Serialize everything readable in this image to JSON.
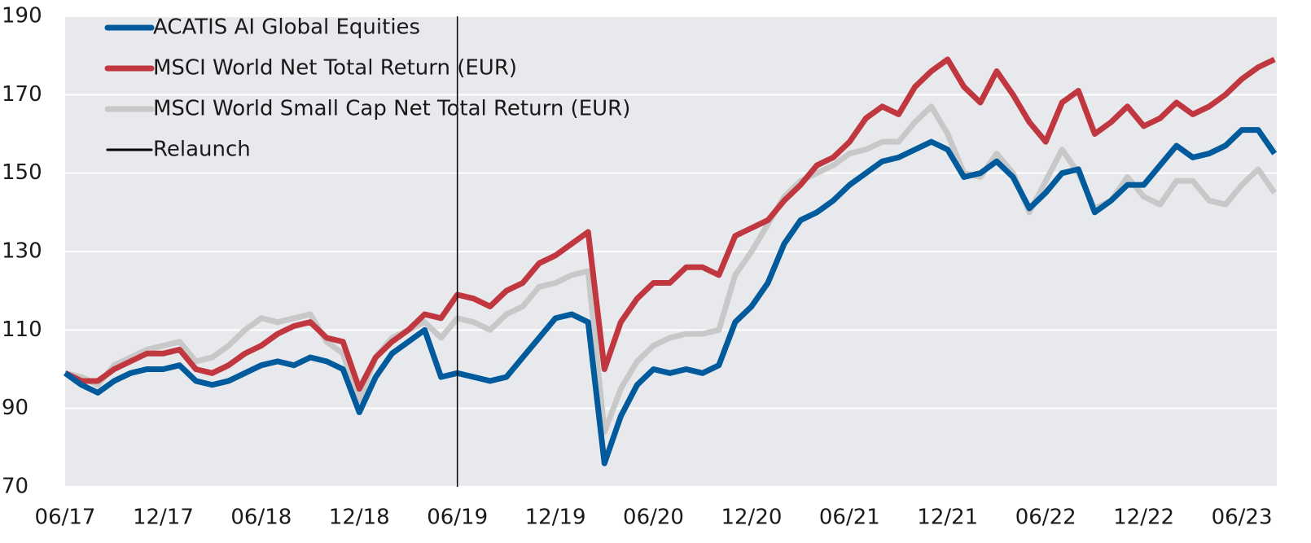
{
  "chart_data": {
    "type": "line",
    "categories": [
      "06/17",
      null,
      null,
      null,
      null,
      null,
      "12/17",
      null,
      null,
      null,
      null,
      null,
      "06/18",
      null,
      null,
      null,
      null,
      null,
      "12/18",
      null,
      null,
      null,
      null,
      null,
      "06/19",
      null,
      null,
      null,
      null,
      null,
      "12/19",
      null,
      null,
      null,
      null,
      null,
      "06/20",
      null,
      null,
      null,
      null,
      null,
      "12/20",
      null,
      null,
      null,
      null,
      null,
      "06/21",
      null,
      null,
      null,
      null,
      null,
      "12/21",
      null,
      null,
      null,
      null,
      null,
      "06/22",
      null,
      null,
      null,
      null,
      null,
      "12/22",
      null,
      null,
      null,
      null,
      null,
      "06/23",
      null,
      null
    ],
    "series": [
      {
        "name": "MSCI World Small Cap Net Total Return (EUR)",
        "color": "#c8c8c8",
        "values": [
          99,
          98,
          96,
          101,
          103,
          105,
          106,
          107,
          102,
          103,
          106,
          110,
          113,
          112,
          113,
          114,
          107,
          104,
          92,
          103,
          108,
          110,
          112,
          108,
          113,
          112,
          110,
          114,
          116,
          121,
          122,
          124,
          125,
          84,
          95,
          102,
          106,
          108,
          109,
          109,
          110,
          124,
          130,
          137,
          144,
          148,
          150,
          152,
          155,
          156,
          158,
          158,
          163,
          167,
          160,
          150,
          149,
          155,
          150,
          140,
          148,
          156,
          150,
          141,
          143,
          149,
          144,
          142,
          148,
          148,
          143,
          142,
          147,
          151,
          145
        ]
      },
      {
        "name": "MSCI World Net Total Return (EUR)",
        "color": "#c0373f",
        "values": [
          99,
          97,
          97,
          100,
          102,
          104,
          104,
          105,
          100,
          99,
          101,
          104,
          106,
          109,
          111,
          112,
          108,
          107,
          95,
          103,
          107,
          110,
          114,
          113,
          119,
          118,
          116,
          120,
          122,
          127,
          129,
          132,
          135,
          100,
          112,
          118,
          122,
          122,
          126,
          126,
          124,
          134,
          136,
          138,
          143,
          147,
          152,
          154,
          158,
          164,
          167,
          165,
          172,
          176,
          179,
          172,
          168,
          176,
          170,
          163,
          158,
          168,
          171,
          160,
          163,
          167,
          162,
          164,
          168,
          165,
          167,
          170,
          174,
          177,
          179
        ]
      },
      {
        "name": "ACATIS AI Global Equities",
        "color": "#005a9c",
        "values": [
          99,
          96,
          94,
          97,
          99,
          100,
          100,
          101,
          97,
          96,
          97,
          99,
          101,
          102,
          101,
          103,
          102,
          100,
          89,
          98,
          104,
          107,
          110,
          98,
          99,
          98,
          97,
          98,
          103,
          108,
          113,
          114,
          112,
          76,
          88,
          96,
          100,
          99,
          100,
          99,
          101,
          112,
          116,
          122,
          132,
          138,
          140,
          143,
          147,
          150,
          153,
          154,
          156,
          158,
          156,
          149,
          150,
          153,
          149,
          141,
          145,
          150,
          151,
          140,
          143,
          147,
          147,
          152,
          157,
          154,
          155,
          157,
          161,
          161,
          155
        ]
      }
    ],
    "legend_order": [
      2,
      1,
      0
    ],
    "vline": {
      "name": "Relaunch",
      "at": "06/19",
      "color": "#000000"
    },
    "ylim": [
      70,
      190
    ],
    "yticks": [
      70,
      90,
      110,
      130,
      150,
      170,
      190
    ],
    "grid": true
  }
}
